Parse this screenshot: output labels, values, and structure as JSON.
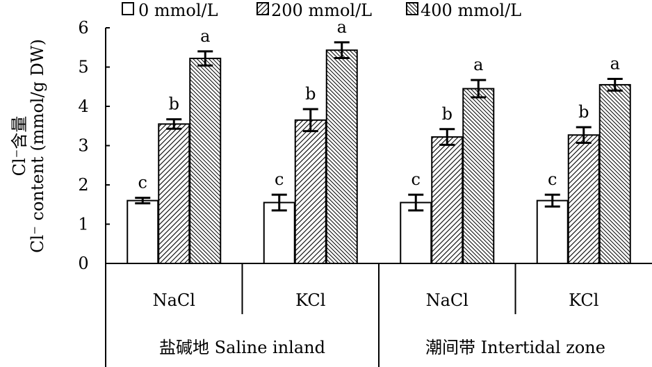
{
  "chart_data": {
    "type": "bar",
    "y_axis_title_cn": "Cl⁻含量",
    "y_axis_title_en": "Cl⁻ content (mmol/g DW)",
    "ylim": [
      0,
      6
    ],
    "y_ticks": [
      "0",
      "1",
      "2",
      "3",
      "4",
      "5",
      "6"
    ],
    "legend_position": "top",
    "categories": [
      "NaCl",
      "KCl",
      "NaCl",
      "KCl"
    ],
    "groups": [
      {
        "label": "盐碱地 Saline inland",
        "categories": [
          0,
          1
        ]
      },
      {
        "label": "潮间带 Intertidal zone",
        "categories": [
          2,
          3
        ]
      }
    ],
    "series": [
      {
        "name": "0 mmol/L",
        "pattern": "none",
        "values": [
          1.6,
          1.55,
          1.55,
          1.6
        ],
        "errors": [
          0.07,
          0.2,
          0.2,
          0.15
        ],
        "letters": [
          "c",
          "c",
          "c",
          "c"
        ]
      },
      {
        "name": "200 mmol/L",
        "pattern": "hatch-right",
        "values": [
          3.55,
          3.65,
          3.22,
          3.27
        ],
        "errors": [
          0.12,
          0.28,
          0.2,
          0.2
        ],
        "letters": [
          "b",
          "b",
          "b",
          "b"
        ]
      },
      {
        "name": "400 mmol/L",
        "pattern": "hatch-left",
        "values": [
          5.22,
          5.43,
          4.45,
          4.55
        ],
        "errors": [
          0.18,
          0.2,
          0.22,
          0.15
        ],
        "letters": [
          "a",
          "a",
          "a",
          "a"
        ]
      }
    ]
  }
}
